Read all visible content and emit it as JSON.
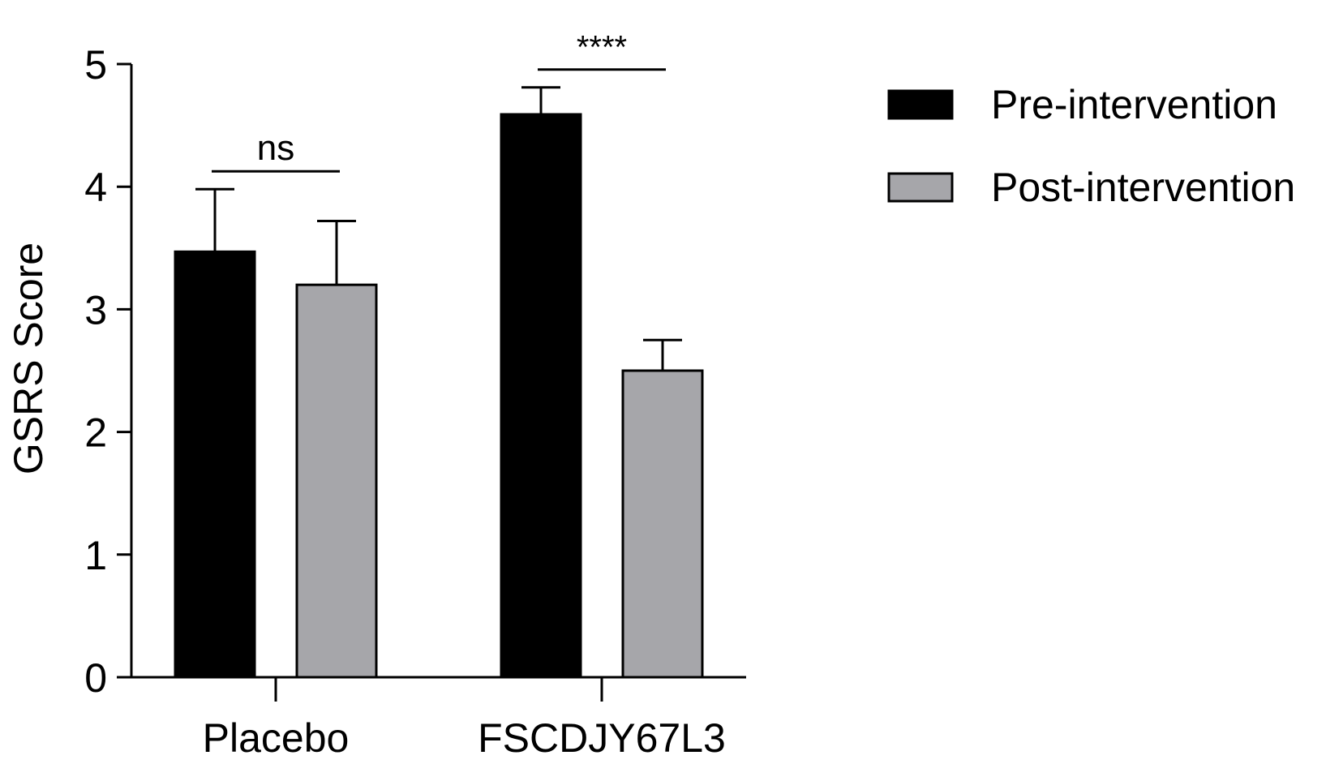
{
  "chart_data": {
    "type": "bar",
    "title": "",
    "xlabel": "",
    "ylabel": "GSRS Score",
    "ylim": [
      0,
      5
    ],
    "yticks": [
      "0",
      "1",
      "2",
      "3",
      "4",
      "5"
    ],
    "categories": [
      "Placebo",
      "FSCDJY67L3"
    ],
    "series": [
      {
        "name": "Pre-intervention",
        "color": "#000000",
        "values": [
          3.47,
          4.59
        ],
        "errors": [
          0.51,
          0.22
        ]
      },
      {
        "name": "Post-intervention",
        "color": "#a6a6aa",
        "values": [
          3.2,
          2.5
        ],
        "errors": [
          0.52,
          0.25
        ]
      }
    ],
    "significance": [
      {
        "category": "Placebo",
        "label": "ns"
      },
      {
        "category": "FSCDJY67L3",
        "label": "****"
      }
    ],
    "legend_position": "top-right",
    "grid": false
  }
}
